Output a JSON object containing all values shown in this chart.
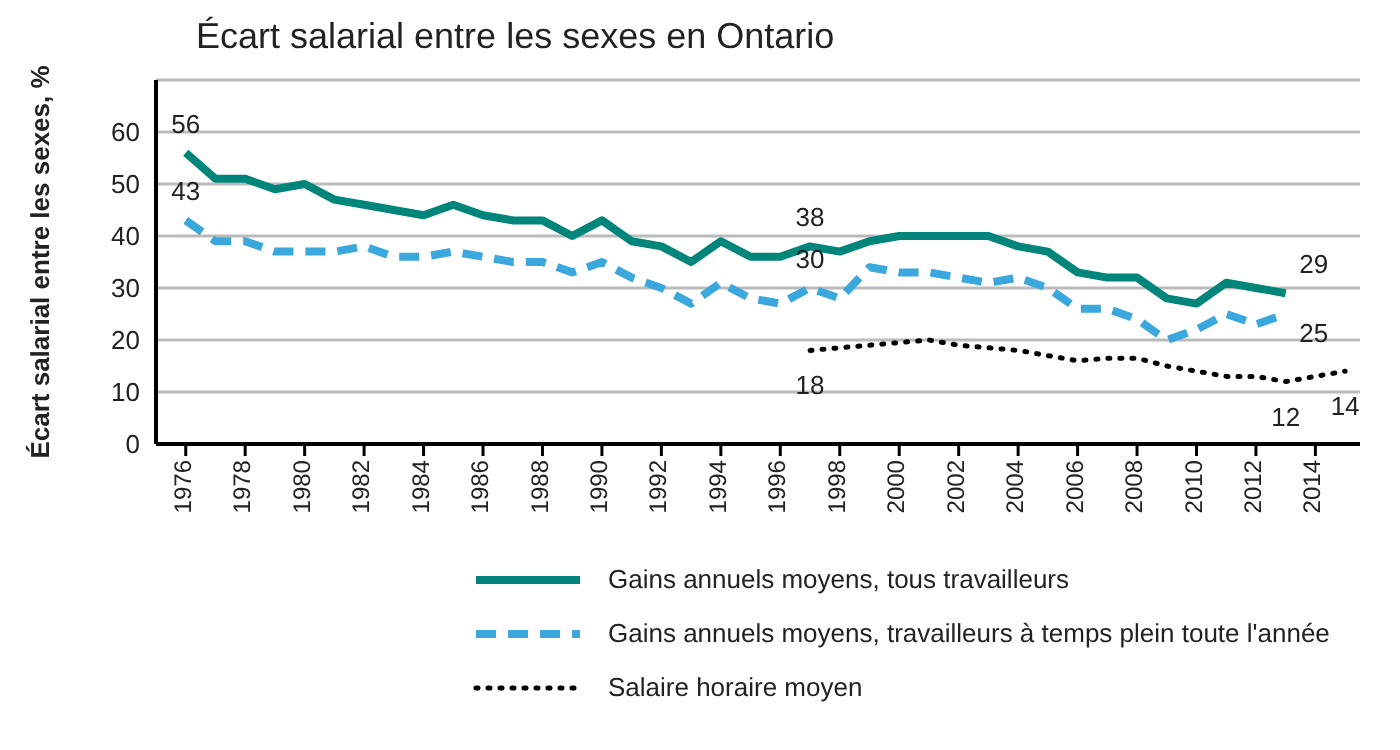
{
  "chart_data": {
    "type": "line",
    "title": "Écart salarial entre les sexes en Ontario",
    "ylabel": "Écart salarial entre les sexes, %",
    "xlim": [
      1975,
      2015.5
    ],
    "xticks": [
      1976,
      1978,
      1980,
      1982,
      1984,
      1986,
      1988,
      1990,
      1992,
      1994,
      1996,
      1998,
      2000,
      2002,
      2004,
      2006,
      2008,
      2010,
      2012,
      2014
    ],
    "ylim": [
      0,
      70
    ],
    "yticks": [
      0,
      10,
      20,
      30,
      40,
      50,
      60,
      {
        "value": 70,
        "label": null
      }
    ],
    "grid": "y",
    "legend": "bottom",
    "marker": "none",
    "series": [
      {
        "name": "Gains annuels moyens, tous travailleurs",
        "color": "#00857a",
        "line_style": "solid",
        "x": [
          1976,
          1977,
          1978,
          1979,
          1980,
          1981,
          1982,
          1983,
          1984,
          1985,
          1986,
          1987,
          1988,
          1989,
          1990,
          1991,
          1992,
          1993,
          1994,
          1995,
          1996,
          1997,
          1998,
          1999,
          2000,
          2001,
          2002,
          2003,
          2004,
          2005,
          2006,
          2007,
          2008,
          2009,
          2010,
          2011,
          2012,
          2013
        ],
        "values": [
          56,
          51,
          51,
          49,
          50,
          47,
          46,
          45,
          44,
          46,
          44,
          43,
          43,
          40,
          43,
          39,
          38,
          35,
          39,
          36,
          36,
          38,
          37,
          39,
          40,
          40,
          40,
          40,
          38,
          37,
          33,
          32,
          32,
          28,
          27,
          31,
          30,
          29
        ],
        "value_labels": [
          "56",
          null,
          null,
          null,
          null,
          null,
          null,
          null,
          null,
          null,
          null,
          null,
          null,
          null,
          null,
          null,
          null,
          null,
          null,
          null,
          null,
          "38",
          null,
          null,
          null,
          null,
          null,
          null,
          null,
          null,
          null,
          null,
          null,
          null,
          null,
          null,
          null,
          "29"
        ]
      },
      {
        "name": "Gains annuels moyens, travailleurs à temps plein toute l'année",
        "color": "#3aa8dc",
        "line_style": "dashed",
        "x": [
          1976,
          1977,
          1978,
          1979,
          1980,
          1981,
          1982,
          1983,
          1984,
          1985,
          1986,
          1987,
          1988,
          1989,
          1990,
          1991,
          1992,
          1993,
          1994,
          1995,
          1996,
          1997,
          1998,
          1999,
          2000,
          2001,
          2002,
          2003,
          2004,
          2005,
          2006,
          2007,
          2008,
          2009,
          2010,
          2011,
          2012,
          2013
        ],
        "values": [
          43,
          39,
          39,
          37,
          37,
          37,
          38,
          36,
          36,
          37,
          36,
          35,
          35,
          33,
          35,
          32,
          30,
          27,
          31,
          28,
          27,
          30,
          28,
          34,
          33,
          33,
          32,
          31,
          32,
          30,
          26,
          26,
          24,
          20,
          22,
          25,
          23,
          25
        ],
        "value_labels": [
          "43",
          null,
          null,
          null,
          null,
          null,
          null,
          null,
          null,
          null,
          null,
          null,
          null,
          null,
          null,
          null,
          null,
          null,
          null,
          null,
          null,
          "30",
          null,
          null,
          null,
          null,
          null,
          null,
          null,
          null,
          null,
          null,
          null,
          null,
          null,
          null,
          null,
          "25"
        ]
      },
      {
        "name": "Salaire horaire moyen",
        "color": "#000000",
        "line_style": "dotted",
        "x": [
          1997,
          1998,
          1999,
          2000,
          2001,
          2002,
          2003,
          2004,
          2005,
          2006,
          2007,
          2008,
          2009,
          2010,
          2011,
          2012,
          2013,
          2014,
          2015
        ],
        "values": [
          18,
          18.5,
          19,
          19.5,
          20,
          19,
          18.5,
          18,
          17,
          16,
          16.5,
          16.5,
          15,
          14,
          13,
          13,
          12,
          13,
          14
        ],
        "value_labels": [
          "18",
          null,
          null,
          null,
          null,
          null,
          null,
          null,
          null,
          null,
          null,
          null,
          null,
          null,
          null,
          null,
          "12",
          null,
          "14"
        ]
      }
    ]
  }
}
